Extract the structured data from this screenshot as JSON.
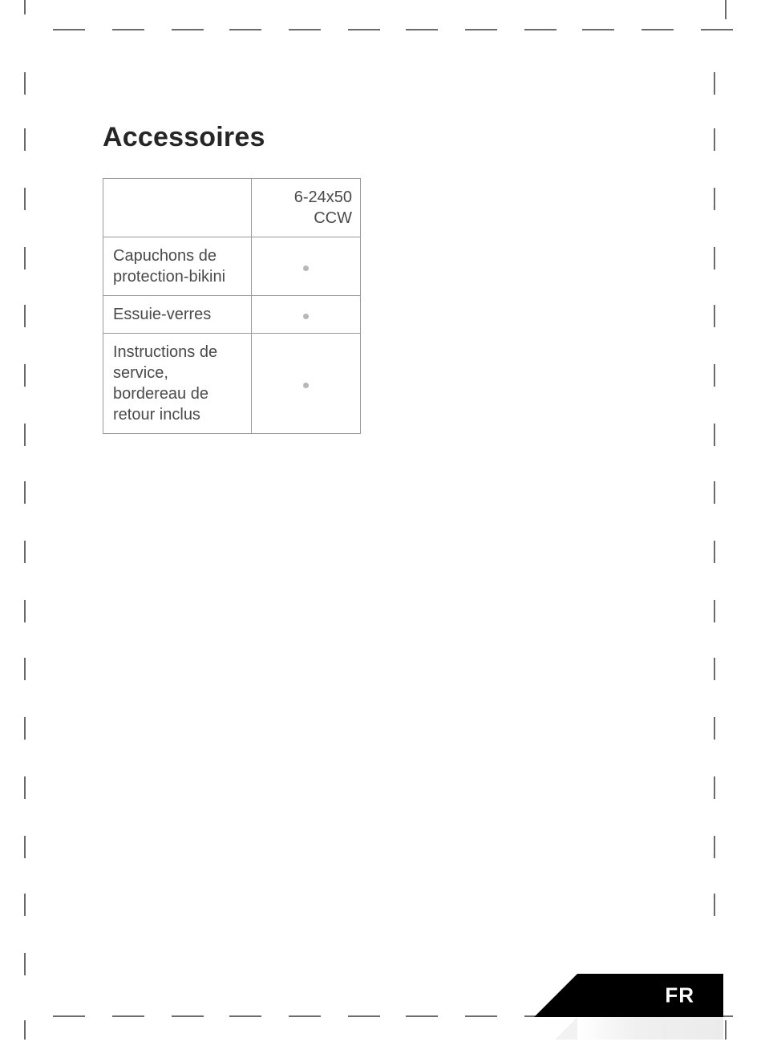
{
  "page": {
    "heading": "Accessoires",
    "language_tab": "FR",
    "background_color": "#ffffff",
    "text_color": "#3a3a3a",
    "crop_mark_color": "#6b6b6b"
  },
  "table": {
    "border_color": "#9a9a9a",
    "dot_color": "#b7b7b7",
    "header_col": "6-24x50 CCW",
    "rows": [
      {
        "label": "Capuchons de protection-bikini",
        "included": true
      },
      {
        "label": "Essuie-verres",
        "included": true
      },
      {
        "label": "Instructions de service, bordereau de retour inclus",
        "included": true
      }
    ]
  },
  "crop_marks": {
    "top_dash_lefts": [
      66,
      140,
      214,
      286,
      360,
      434,
      506,
      580,
      654,
      726,
      800,
      874
    ],
    "bottom_dash_lefts": [
      66,
      140,
      214,
      286,
      360,
      434,
      506,
      580,
      654,
      726,
      800,
      874
    ],
    "dash_width": 40,
    "left_ticks_tops": [
      90,
      160,
      234,
      308,
      380,
      454,
      528,
      600,
      674,
      748,
      820,
      894,
      968,
      1042,
      1114,
      1188
    ],
    "right_ticks_tops": [
      90,
      160,
      234,
      308,
      380,
      454,
      528,
      600,
      674,
      748,
      820,
      894,
      968,
      1042,
      1114
    ],
    "tick_height": 28
  }
}
